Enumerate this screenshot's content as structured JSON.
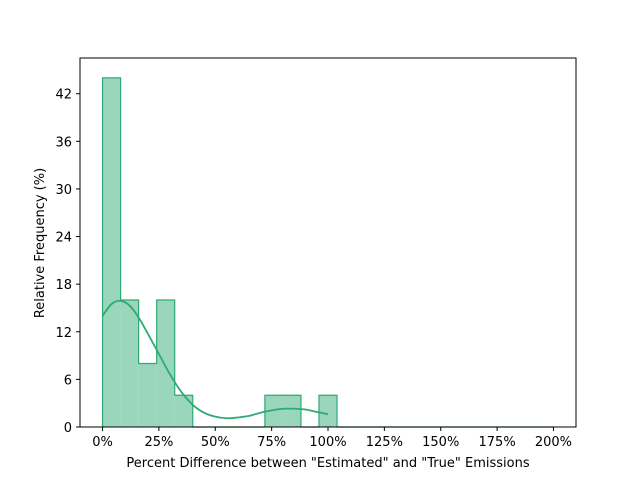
{
  "chart_data": {
    "type": "histogram",
    "title": "",
    "xlabel": "Percent Difference between \"Estimated\" and \"True\" Emissions",
    "ylabel": "Relative Frequency (%)",
    "xlim": [
      -10,
      210
    ],
    "ylim": [
      0,
      46.5
    ],
    "x_ticks": [
      0,
      25,
      50,
      75,
      100,
      125,
      150,
      175,
      200
    ],
    "x_tick_labels": [
      "0%",
      "25%",
      "50%",
      "75%",
      "100%",
      "125%",
      "150%",
      "175%",
      "200%"
    ],
    "y_ticks": [
      0,
      6,
      12,
      18,
      24,
      30,
      36,
      42
    ],
    "y_tick_labels": [
      "0",
      "6",
      "12",
      "18",
      "24",
      "30",
      "36",
      "42"
    ],
    "bin_width": 8,
    "bin_starts": [
      0,
      8,
      16,
      24,
      32,
      40,
      48,
      56,
      64,
      72,
      80,
      88,
      96,
      104,
      112,
      120,
      128,
      136,
      144,
      152,
      160,
      168,
      176,
      184,
      192
    ],
    "values": [
      44,
      16,
      8,
      16,
      4,
      0,
      0,
      0,
      0,
      4,
      4,
      0,
      4,
      0,
      0,
      0,
      0,
      0,
      0,
      0,
      0,
      0,
      0,
      0,
      0
    ],
    "bin_range_end": 200,
    "kde": {
      "x": [
        0,
        4,
        8,
        12,
        16,
        20,
        25,
        30,
        35,
        40,
        45,
        50,
        55,
        60,
        65,
        70,
        75,
        80,
        85,
        90,
        95,
        100
      ],
      "y": [
        14,
        15.5,
        15.9,
        15.3,
        13.8,
        11.8,
        9.2,
        6.6,
        4.4,
        2.8,
        1.8,
        1.3,
        1.1,
        1.2,
        1.4,
        1.8,
        2.1,
        2.3,
        2.3,
        2.2,
        1.9,
        1.6
      ]
    },
    "grid": false,
    "legend": "none",
    "colors": {
      "bar_fill": "#9ad6bb",
      "bar_edge": "#2eaa74",
      "kde_line": "#2eaa74"
    }
  }
}
